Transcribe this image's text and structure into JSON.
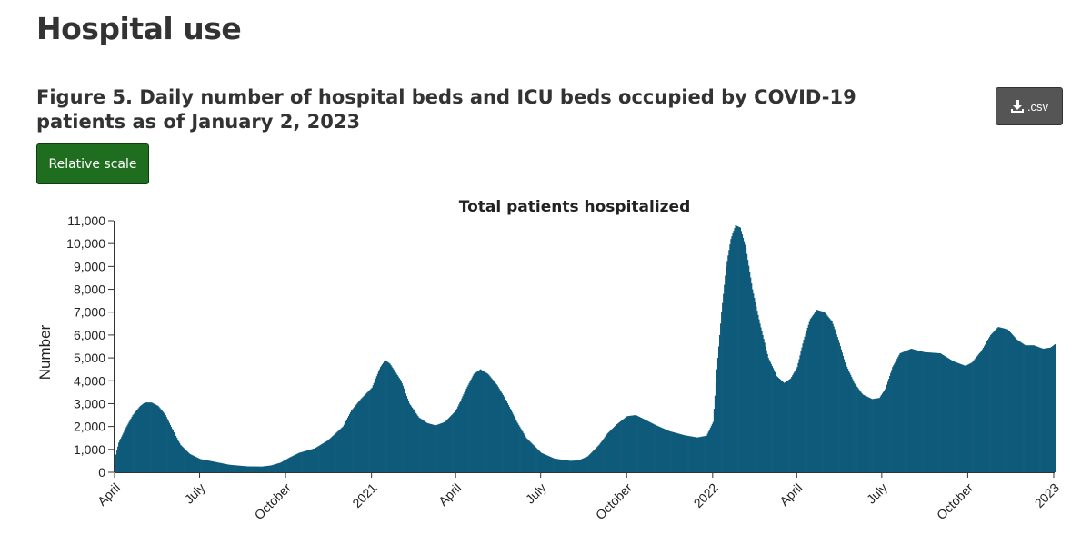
{
  "page": {
    "title": "Hospital use"
  },
  "figure": {
    "title": "Figure 5. Daily number of hospital beds and ICU beds occupied by COVID-19 patients as of January 2, 2023"
  },
  "controls": {
    "csv_label": ".csv",
    "relative_scale_label": "Relative scale"
  },
  "colors": {
    "bar": "#0f5a7a",
    "button_green": "#1f6e1f",
    "button_gray": "#555555"
  },
  "chart_data": {
    "type": "area",
    "title": "Total patients hospitalized",
    "xlabel": "",
    "ylabel": "Number",
    "ylim": [
      0,
      11000
    ],
    "yticks": [
      0,
      1000,
      2000,
      3000,
      4000,
      5000,
      6000,
      7000,
      8000,
      9000,
      10000,
      11000
    ],
    "ytick_labels": [
      "0",
      "1,000",
      "2,000",
      "3,000",
      "4,000",
      "5,000",
      "6,000",
      "7,000",
      "8,000",
      "9,000",
      "10,000",
      "11,000"
    ],
    "xlim": [
      "2020-04-01",
      "2023-01-02"
    ],
    "xticks": [
      {
        "date": "2020-04-01",
        "label": "April"
      },
      {
        "date": "2020-07-01",
        "label": "July"
      },
      {
        "date": "2020-10-01",
        "label": "October"
      },
      {
        "date": "2021-01-01",
        "label": "2021"
      },
      {
        "date": "2021-04-01",
        "label": "April"
      },
      {
        "date": "2021-07-01",
        "label": "July"
      },
      {
        "date": "2021-10-01",
        "label": "October"
      },
      {
        "date": "2022-01-01",
        "label": "2022"
      },
      {
        "date": "2022-04-01",
        "label": "April"
      },
      {
        "date": "2022-07-01",
        "label": "July"
      },
      {
        "date": "2022-10-01",
        "label": "October"
      },
      {
        "date": "2023-01-01",
        "label": "2023"
      }
    ],
    "series": [
      {
        "name": "Total patients hospitalized",
        "points": [
          [
            "2020-04-01",
            600
          ],
          [
            "2020-04-05",
            1300
          ],
          [
            "2020-04-12",
            1900
          ],
          [
            "2020-04-20",
            2500
          ],
          [
            "2020-04-28",
            2900
          ],
          [
            "2020-05-03",
            3050
          ],
          [
            "2020-05-10",
            3050
          ],
          [
            "2020-05-17",
            2900
          ],
          [
            "2020-05-25",
            2500
          ],
          [
            "2020-06-01",
            1900
          ],
          [
            "2020-06-10",
            1200
          ],
          [
            "2020-06-20",
            800
          ],
          [
            "2020-07-01",
            580
          ],
          [
            "2020-07-15",
            470
          ],
          [
            "2020-08-01",
            330
          ],
          [
            "2020-08-20",
            260
          ],
          [
            "2020-09-05",
            250
          ],
          [
            "2020-09-15",
            300
          ],
          [
            "2020-09-25",
            420
          ],
          [
            "2020-10-05",
            650
          ],
          [
            "2020-10-15",
            850
          ],
          [
            "2020-11-01",
            1050
          ],
          [
            "2020-11-15",
            1400
          ],
          [
            "2020-12-01",
            2000
          ],
          [
            "2020-12-10",
            2700
          ],
          [
            "2020-12-20",
            3200
          ],
          [
            "2021-01-01",
            3700
          ],
          [
            "2021-01-10",
            4600
          ],
          [
            "2021-01-15",
            4900
          ],
          [
            "2021-01-20",
            4750
          ],
          [
            "2021-02-01",
            4000
          ],
          [
            "2021-02-10",
            3000
          ],
          [
            "2021-02-20",
            2400
          ],
          [
            "2021-03-01",
            2150
          ],
          [
            "2021-03-10",
            2050
          ],
          [
            "2021-03-20",
            2200
          ],
          [
            "2021-04-01",
            2700
          ],
          [
            "2021-04-10",
            3500
          ],
          [
            "2021-04-20",
            4300
          ],
          [
            "2021-04-27",
            4500
          ],
          [
            "2021-05-05",
            4300
          ],
          [
            "2021-05-15",
            3800
          ],
          [
            "2021-05-25",
            3100
          ],
          [
            "2021-06-05",
            2200
          ],
          [
            "2021-06-15",
            1500
          ],
          [
            "2021-07-01",
            850
          ],
          [
            "2021-07-15",
            600
          ],
          [
            "2021-08-01",
            500
          ],
          [
            "2021-08-10",
            520
          ],
          [
            "2021-08-20",
            700
          ],
          [
            "2021-09-01",
            1200
          ],
          [
            "2021-09-10",
            1700
          ],
          [
            "2021-09-20",
            2100
          ],
          [
            "2021-10-01",
            2450
          ],
          [
            "2021-10-10",
            2500
          ],
          [
            "2021-10-20",
            2300
          ],
          [
            "2021-11-01",
            2050
          ],
          [
            "2021-11-15",
            1800
          ],
          [
            "2021-12-01",
            1620
          ],
          [
            "2021-12-15",
            1520
          ],
          [
            "2021-12-25",
            1600
          ],
          [
            "2022-01-01",
            2200
          ],
          [
            "2022-01-05",
            4500
          ],
          [
            "2022-01-10",
            7000
          ],
          [
            "2022-01-15",
            9000
          ],
          [
            "2022-01-20",
            10200
          ],
          [
            "2022-01-25",
            10800
          ],
          [
            "2022-01-30",
            10700
          ],
          [
            "2022-02-05",
            9800
          ],
          [
            "2022-02-12",
            8000
          ],
          [
            "2022-02-20",
            6500
          ],
          [
            "2022-03-01",
            5000
          ],
          [
            "2022-03-10",
            4200
          ],
          [
            "2022-03-18",
            3900
          ],
          [
            "2022-03-25",
            4100
          ],
          [
            "2022-04-01",
            4600
          ],
          [
            "2022-04-08",
            5800
          ],
          [
            "2022-04-15",
            6700
          ],
          [
            "2022-04-22",
            7100
          ],
          [
            "2022-04-30",
            7000
          ],
          [
            "2022-05-08",
            6600
          ],
          [
            "2022-05-15",
            5800
          ],
          [
            "2022-05-22",
            4800
          ],
          [
            "2022-06-01",
            3900
          ],
          [
            "2022-06-10",
            3400
          ],
          [
            "2022-06-20",
            3200
          ],
          [
            "2022-06-28",
            3250
          ],
          [
            "2022-07-05",
            3700
          ],
          [
            "2022-07-12",
            4600
          ],
          [
            "2022-07-20",
            5200
          ],
          [
            "2022-08-01",
            5400
          ],
          [
            "2022-08-15",
            5250
          ],
          [
            "2022-09-01",
            5200
          ],
          [
            "2022-09-15",
            4850
          ],
          [
            "2022-09-28",
            4650
          ],
          [
            "2022-10-05",
            4800
          ],
          [
            "2022-10-15",
            5300
          ],
          [
            "2022-10-25",
            6000
          ],
          [
            "2022-11-02",
            6350
          ],
          [
            "2022-11-12",
            6250
          ],
          [
            "2022-11-22",
            5800
          ],
          [
            "2022-12-01",
            5550
          ],
          [
            "2022-12-10",
            5550
          ],
          [
            "2022-12-20",
            5400
          ],
          [
            "2022-12-28",
            5450
          ],
          [
            "2023-01-02",
            5600
          ]
        ]
      }
    ]
  }
}
